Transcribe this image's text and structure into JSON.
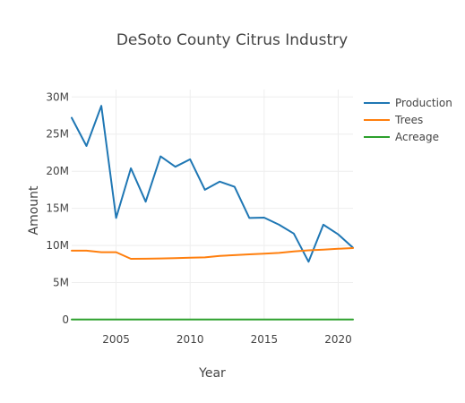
{
  "chart_data": {
    "type": "line",
    "title": "DeSoto County Citrus Industry",
    "xlabel": "Year",
    "ylabel": "Amount",
    "x": [
      2002,
      2003,
      2004,
      2005,
      2006,
      2007,
      2008,
      2009,
      2010,
      2011,
      2012,
      2013,
      2014,
      2015,
      2016,
      2017,
      2018,
      2019,
      2020,
      2021
    ],
    "xlim": [
      2002,
      2021
    ],
    "ylim": [
      0,
      31000000
    ],
    "x_ticks": [
      2005,
      2010,
      2015,
      2020
    ],
    "x_tick_labels": [
      "2005",
      "2010",
      "2015",
      "2020"
    ],
    "y_ticks": [
      0,
      5000000,
      10000000,
      15000000,
      20000000,
      25000000,
      30000000
    ],
    "y_tick_labels": [
      "0",
      "5M",
      "10M",
      "15M",
      "20M",
      "25M",
      "30M"
    ],
    "grid": true,
    "legend_position": "top-right",
    "series": [
      {
        "name": "Production",
        "color": "#1f77b4",
        "values": [
          27200000,
          23400000,
          28800000,
          13700000,
          20400000,
          15900000,
          22000000,
          20600000,
          21600000,
          17500000,
          18600000,
          17900000,
          13700000,
          13750000,
          12800000,
          11600000,
          7800000,
          12800000,
          11500000,
          9700000
        ]
      },
      {
        "name": "Trees",
        "color": "#ff7f0e",
        "values": [
          9300000,
          9300000,
          9100000,
          9100000,
          8200000,
          8220000,
          8250000,
          8300000,
          8350000,
          8400000,
          8600000,
          8700000,
          8800000,
          8900000,
          9000000,
          9200000,
          9350000,
          9450000,
          9550000,
          9650000
        ]
      },
      {
        "name": "Acreage",
        "color": "#2ca02c",
        "values": [
          30000,
          30000,
          30000,
          30000,
          30000,
          30000,
          30000,
          30000,
          30000,
          30000,
          30000,
          30000,
          30000,
          30000,
          30000,
          30000,
          30000,
          30000,
          30000,
          30000
        ]
      }
    ]
  }
}
